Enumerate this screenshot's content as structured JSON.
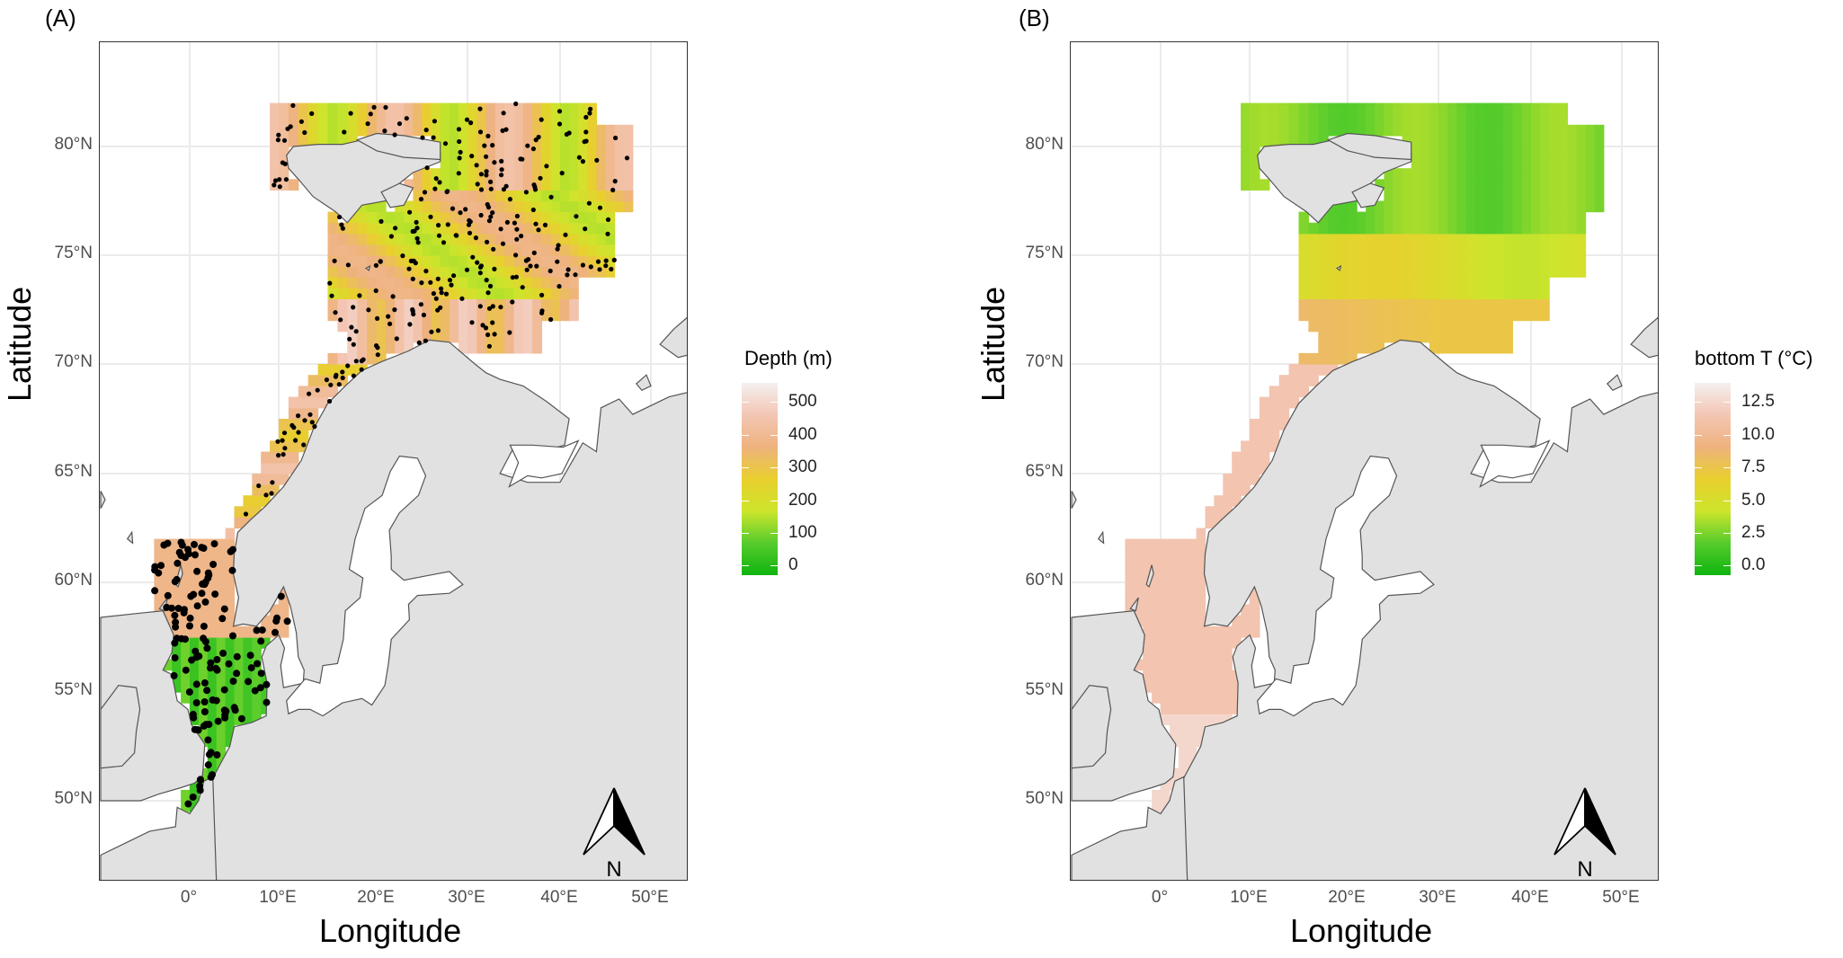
{
  "panels": [
    {
      "tag": "(A)",
      "ylabel": "Latitude",
      "xlabel": "Longitude",
      "north_label": "N",
      "x_ticks": [
        "0°",
        "10°E",
        "20°E",
        "30°E",
        "40°E",
        "50°E"
      ],
      "y_ticks": [
        "80°N",
        "75°N",
        "70°N",
        "65°N",
        "60°N",
        "55°N",
        "50°N"
      ],
      "legend": {
        "title": "Depth (m)",
        "labels": [
          "500",
          "400",
          "300",
          "200",
          "100",
          "0"
        ],
        "colors": [
          "#f5f0f0",
          "#f3c6b4",
          "#eeb27e",
          "#e9cf2e",
          "#cde52c",
          "#56cc2c",
          "#0fb40f"
        ]
      }
    },
    {
      "tag": "(B)",
      "ylabel": "Latitude",
      "xlabel": "Longitude",
      "north_label": "N",
      "x_ticks": [
        "0°",
        "10°E",
        "20°E",
        "30°E",
        "40°E",
        "50°E"
      ],
      "y_ticks": [
        "80°N",
        "75°N",
        "70°N",
        "65°N",
        "60°N",
        "55°N",
        "50°N"
      ],
      "legend": {
        "title": "bottom T (°C)",
        "labels": [
          "12.5",
          "10.0",
          "7.5",
          "5.0",
          "2.5",
          "0.0"
        ],
        "colors": [
          "#f5f0f0",
          "#f3c6b4",
          "#eeb27e",
          "#e9cf2e",
          "#cde52c",
          "#56cc2c",
          "#0fb40f"
        ]
      }
    }
  ],
  "map_colors": {
    "land": "#e1e1e1",
    "coast": "#555555",
    "sea": "#ffffff",
    "grid": "#ebebeb",
    "points": "#000000"
  }
}
